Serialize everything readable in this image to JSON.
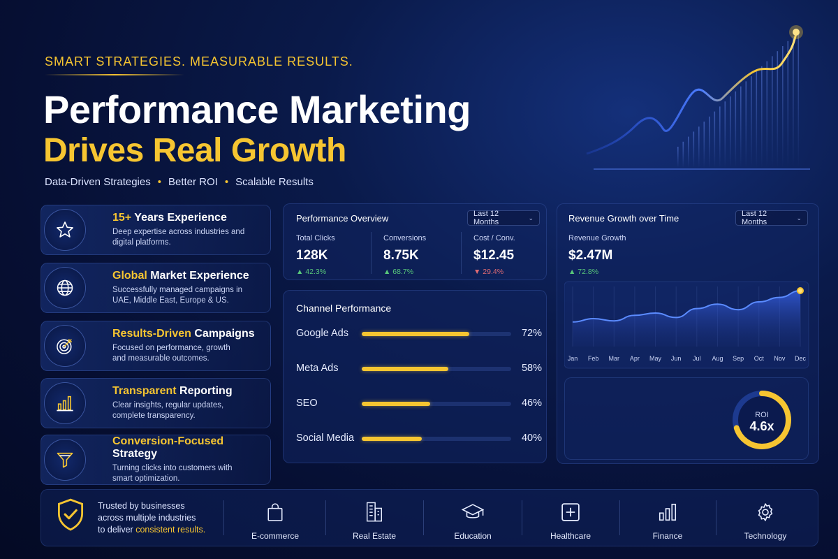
{
  "hero": {
    "tagline": "SMART STRATEGIES. MEASURABLE RESULTS.",
    "title": "Performance Marketing",
    "subtitle": "Drives Real Growth",
    "bullets": [
      "Data-Driven Strategies",
      "Better ROI",
      "Scalable Results"
    ],
    "bullet_separator": "•"
  },
  "features": [
    {
      "icon": "star-icon",
      "title_highlight": "15+",
      "title_rest": " Years Experience",
      "desc": "Deep expertise across industries and digital platforms."
    },
    {
      "icon": "globe-icon",
      "title_highlight": "Global",
      "title_rest": " Market Experience",
      "desc": "Successfully managed campaigns in UAE, Middle East, Europe & US."
    },
    {
      "icon": "target-icon",
      "title_highlight": "Results-Driven",
      "title_rest": " Campaigns",
      "desc": "Focused on performance, growth and measurable outcomes."
    },
    {
      "icon": "bar-chart-icon",
      "title_highlight": "Transparent",
      "title_rest": " Reporting",
      "desc": "Clear insights, regular updates, complete transparency."
    },
    {
      "icon": "funnel-icon",
      "title_highlight": "Conversion-Focused",
      "title_rest": " Strategy",
      "desc": "Turning clicks into customers with smart optimization."
    }
  ],
  "overview": {
    "title": "Performance Overview",
    "dropdown": "Last 12 Months",
    "kpis": [
      {
        "label": "Total Clicks",
        "value": "128K",
        "change": "▲ 42.3%",
        "direction": "up"
      },
      {
        "label": "Conversions",
        "value": "8.75K",
        "change": "▲ 68.7%",
        "direction": "up"
      },
      {
        "label": "Cost / Conv.",
        "value": "$12.45",
        "change": "▼ 29.4%",
        "direction": "down"
      }
    ]
  },
  "channels": {
    "title": "Channel Performance",
    "items": [
      {
        "name": "Google Ads",
        "value": 72,
        "label": "72%"
      },
      {
        "name": "Meta Ads",
        "value": 58,
        "label": "58%"
      },
      {
        "name": "SEO",
        "value": 46,
        "label": "46%"
      },
      {
        "name": "Social Media",
        "value": 40,
        "label": "40%"
      }
    ]
  },
  "revenue": {
    "title": "Revenue Growth over Time",
    "dropdown": "Last 12 Months",
    "metric_label": "Revenue Growth",
    "metric_value": "$2.47M",
    "metric_change": "▲ 72.8%"
  },
  "roi": {
    "label": "ROI",
    "value": "4.6x",
    "fraction": 0.7
  },
  "trust": {
    "line1": "Trusted by businesses",
    "line2": "across multiple industries",
    "line3_prefix": "to deliver ",
    "line3_highlight": "consistent results."
  },
  "industries": [
    {
      "icon": "shopping-bag-icon",
      "label": "E-commerce"
    },
    {
      "icon": "building-icon",
      "label": "Real Estate"
    },
    {
      "icon": "graduation-cap-icon",
      "label": "Education"
    },
    {
      "icon": "medical-cross-icon",
      "label": "Healthcare"
    },
    {
      "icon": "bar-chart-icon",
      "label": "Finance"
    },
    {
      "icon": "gear-icon",
      "label": "Technology"
    }
  ],
  "colors": {
    "accent": "#f6c531",
    "background": "#0a1a4a",
    "up": "#58c77a",
    "down": "#e06b73",
    "line": "#3f6dff"
  },
  "chart_data": [
    {
      "type": "area",
      "title": "Revenue Growth over Time",
      "x": [
        "Jan",
        "Feb",
        "Mar",
        "Apr",
        "May",
        "Jun",
        "Jul",
        "Aug",
        "Sep",
        "Oct",
        "Nov",
        "Dec"
      ],
      "series": [
        {
          "values": [
            44,
            50,
            46,
            56,
            60,
            52,
            68,
            76,
            66,
            80,
            88,
            100
          ]
        }
      ],
      "ylim": [
        0,
        110
      ],
      "grid": true
    },
    {
      "type": "bar",
      "title": "Channel Performance",
      "categories": [
        "Google Ads",
        "Meta Ads",
        "SEO",
        "Social Media"
      ],
      "values": [
        72,
        58,
        46,
        40
      ]
    }
  ]
}
